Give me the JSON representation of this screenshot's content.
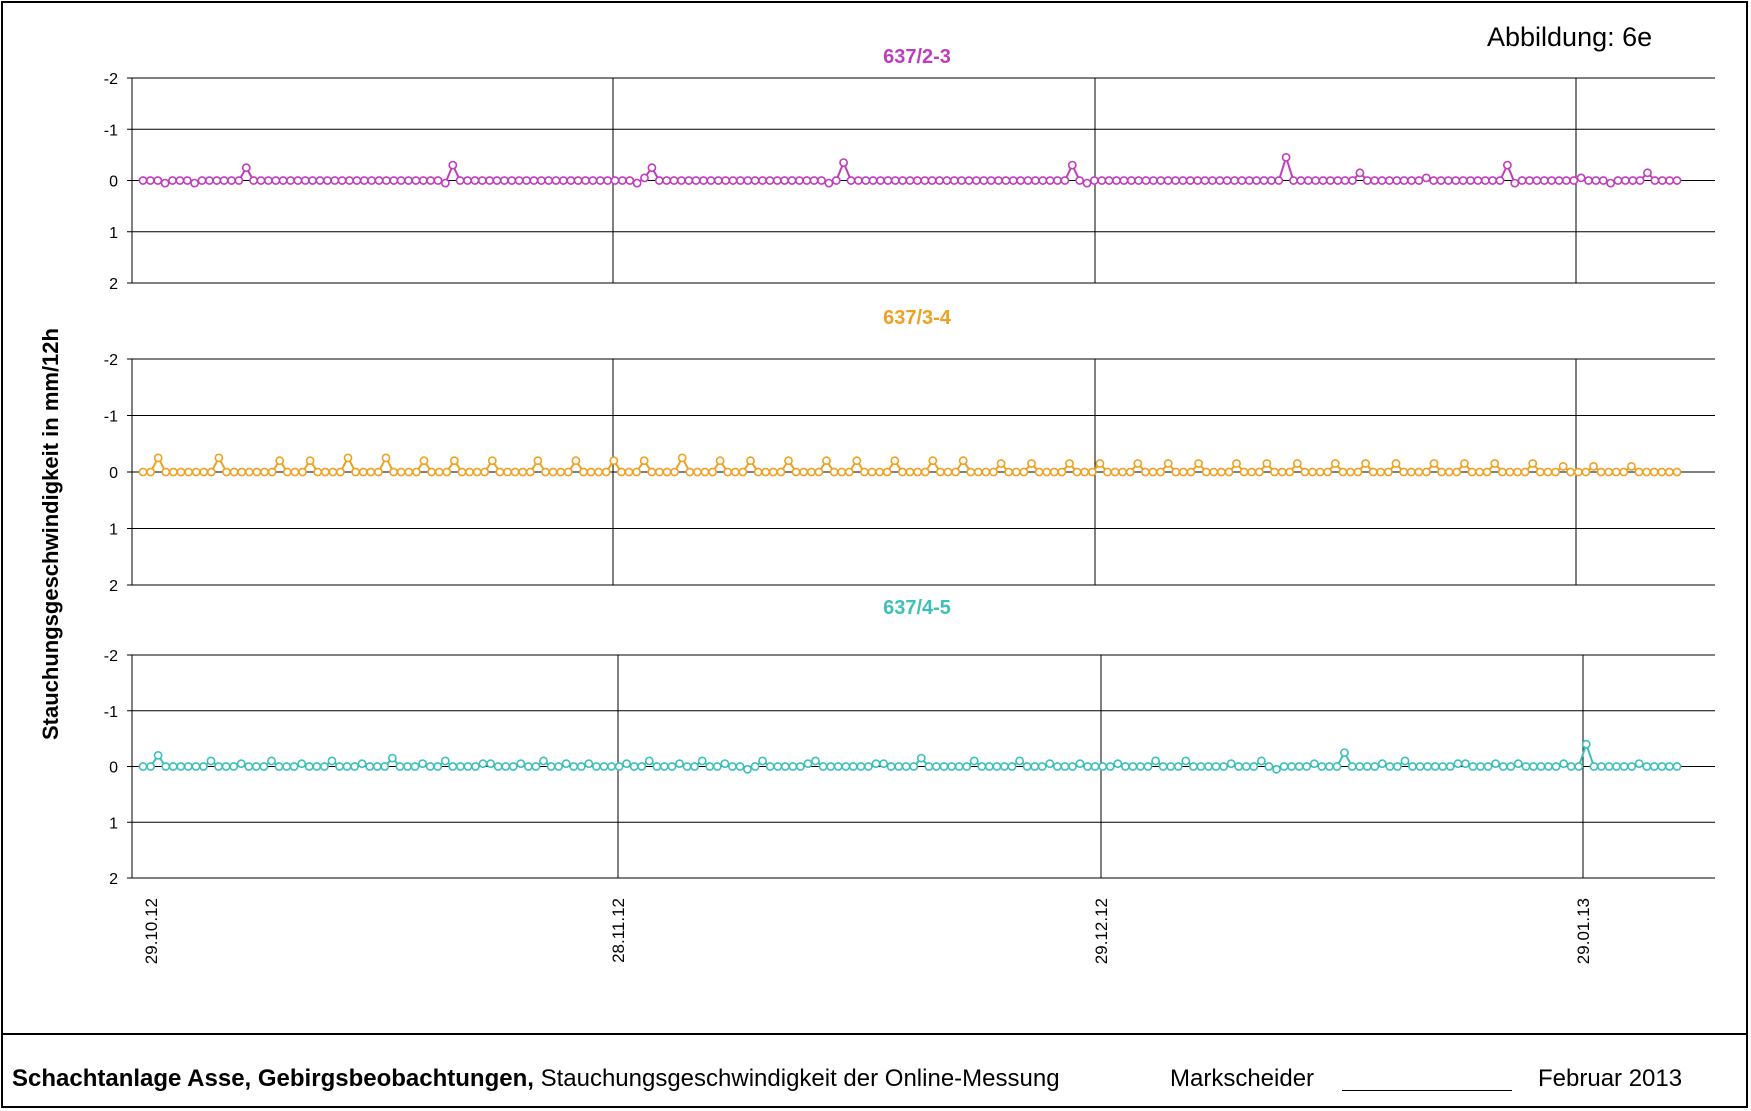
{
  "figure_label": "Abbildung:  6e",
  "y_axis_label": "Stauchungsgeschwindigkeit in mm/12h",
  "footer": {
    "title_bold": "Schachtanlage Asse, Gebirgsbeobachtungen,",
    "title_rest": " Stauchungsgeschwindigkeit der Online-Messung",
    "markscheider": "Markscheider",
    "date": "Februar 2013"
  },
  "chart_data": {
    "type": "line",
    "x_start": "29.10.12",
    "x_end": "10.02.13",
    "x_tick_labels": [
      "29.10.12",
      "28.11.12",
      "29.12.12",
      "29.01.13"
    ],
    "ylim": [
      2,
      -2
    ],
    "y_ticks": [
      -2,
      -1,
      0,
      1,
      2
    ],
    "grid": true,
    "panels": [
      {
        "title": "637/2-3",
        "color": "#c03cbe",
        "series_values_per_12h": [
          0.0,
          0.0,
          0.0,
          0.05,
          0.0,
          0.0,
          0.0,
          0.05,
          0.0,
          0.0,
          0.0,
          0.0,
          0.0,
          0.0,
          -0.25,
          0.0,
          0.0,
          0.0,
          0.0,
          0.0,
          0.0,
          0.0,
          0.0,
          0.0,
          0.0,
          0.0,
          0.0,
          0.0,
          0.0,
          0.0,
          0.0,
          0.0,
          0.0,
          0.0,
          0.0,
          0.0,
          0.0,
          0.0,
          0.0,
          0.0,
          0.0,
          0.05,
          -0.3,
          0.0,
          0.0,
          0.0,
          0.0,
          0.0,
          0.0,
          0.0,
          0.0,
          0.0,
          0.0,
          0.0,
          0.0,
          0.0,
          0.0,
          0.0,
          0.0,
          0.0,
          0.0,
          0.0,
          0.0,
          0.0,
          0.0,
          0.0,
          0.0,
          0.05,
          -0.05,
          -0.25,
          0.0,
          0.0,
          0.0,
          0.0,
          0.0,
          0.0,
          0.0,
          0.0,
          0.0,
          0.0,
          0.0,
          0.0,
          0.0,
          0.0,
          0.0,
          0.0,
          0.0,
          0.0,
          0.0,
          0.0,
          0.0,
          0.0,
          0.0,
          0.05,
          0.0,
          -0.35,
          0.0,
          0.0,
          0.0,
          0.0,
          0.0,
          0.0,
          0.0,
          0.0,
          0.0,
          0.0,
          0.0,
          0.0,
          0.0,
          0.0,
          0.0,
          0.0,
          0.0,
          0.0,
          0.0,
          0.0,
          0.0,
          0.0,
          0.0,
          0.0,
          0.0,
          0.0,
          0.0,
          0.0,
          0.0,
          0.0,
          -0.3,
          0.0,
          0.05,
          0.0,
          0.0,
          0.0,
          0.0,
          0.0,
          0.0,
          0.0,
          0.0,
          0.0,
          0.0,
          0.0,
          0.0,
          0.0,
          0.0,
          0.0,
          0.0,
          0.0,
          0.0,
          0.0,
          0.0,
          0.0,
          0.0,
          0.0,
          0.0,
          0.0,
          0.0,
          -0.45,
          0.0,
          0.0,
          0.0,
          0.0,
          0.0,
          0.0,
          0.0,
          0.0,
          0.0,
          -0.15,
          0.0,
          0.0,
          0.0,
          0.0,
          0.0,
          0.0,
          0.0,
          0.0,
          -0.05,
          0.0,
          0.0,
          0.0,
          0.0,
          0.0,
          0.0,
          0.0,
          0.0,
          0.0,
          0.0,
          -0.3,
          0.05,
          0.0,
          0.0,
          0.0,
          0.0,
          0.0,
          0.0,
          0.0,
          0.0,
          -0.05,
          0.0,
          0.0,
          0.0,
          0.05,
          0.0,
          0.0,
          0.0,
          0.0,
          -0.15,
          0.0,
          0.0,
          0.0,
          0.0
        ]
      },
      {
        "title": "637/3-4",
        "color": "#f0a020",
        "series_values_per_12h": [
          0.0,
          0.0,
          -0.25,
          0.0,
          0.0,
          0.0,
          0.0,
          0.0,
          0.0,
          0.0,
          -0.25,
          0.0,
          0.0,
          0.0,
          0.0,
          0.0,
          0.0,
          0.0,
          -0.2,
          0.0,
          0.0,
          0.0,
          -0.2,
          0.0,
          0.0,
          0.0,
          0.0,
          -0.25,
          0.0,
          0.0,
          0.0,
          0.0,
          -0.25,
          0.0,
          0.0,
          0.0,
          0.0,
          -0.2,
          0.0,
          0.0,
          0.0,
          -0.2,
          0.0,
          0.0,
          0.0,
          0.0,
          -0.2,
          0.0,
          0.0,
          0.0,
          0.0,
          0.0,
          -0.2,
          0.0,
          0.0,
          0.0,
          0.0,
          -0.2,
          0.0,
          0.0,
          0.0,
          0.0,
          -0.2,
          0.0,
          0.0,
          0.0,
          -0.2,
          0.0,
          0.0,
          0.0,
          0.0,
          -0.25,
          0.0,
          0.0,
          0.0,
          0.0,
          -0.2,
          0.0,
          0.0,
          0.0,
          -0.2,
          0.0,
          0.0,
          0.0,
          0.0,
          -0.2,
          0.0,
          0.0,
          0.0,
          0.0,
          -0.2,
          0.0,
          0.0,
          0.0,
          -0.2,
          0.0,
          0.0,
          0.0,
          0.0,
          -0.2,
          0.0,
          0.0,
          0.0,
          0.0,
          -0.2,
          0.0,
          0.0,
          0.0,
          -0.2,
          0.0,
          0.0,
          0.0,
          0.0,
          -0.15,
          0.0,
          0.0,
          0.0,
          -0.15,
          0.0,
          0.0,
          0.0,
          0.0,
          -0.15,
          0.0,
          0.0,
          0.0,
          -0.15,
          0.0,
          0.0,
          0.0,
          0.0,
          -0.15,
          0.0,
          0.0,
          0.0,
          -0.15,
          0.0,
          0.0,
          0.0,
          -0.15,
          0.0,
          0.0,
          0.0,
          0.0,
          -0.15,
          0.0,
          0.0,
          0.0,
          -0.15,
          0.0,
          0.0,
          0.0,
          -0.15,
          0.0,
          0.0,
          0.0,
          0.0,
          -0.15,
          0.0,
          0.0,
          0.0,
          -0.15,
          0.0,
          0.0,
          0.0,
          -0.15,
          0.0,
          0.0,
          0.0,
          0.0,
          -0.15,
          0.0,
          0.0,
          0.0,
          -0.15,
          0.0,
          0.0,
          0.0,
          -0.15,
          0.0,
          0.0,
          0.0,
          0.0,
          -0.15,
          0.0,
          0.0,
          0.0,
          -0.1,
          0.0,
          0.0,
          0.0,
          -0.1,
          0.0,
          0.0,
          0.0,
          0.0,
          -0.1,
          0.0,
          0.0,
          0.0,
          0.0,
          0.0,
          0.0
        ]
      },
      {
        "title": "637/4-5",
        "color": "#3cc0b8",
        "series_values_per_12h": [
          0.0,
          0.0,
          -0.2,
          0.0,
          0.0,
          0.0,
          0.0,
          0.0,
          0.0,
          -0.1,
          0.0,
          0.0,
          0.0,
          -0.05,
          0.0,
          0.0,
          0.0,
          -0.1,
          0.0,
          0.0,
          0.0,
          -0.05,
          0.0,
          0.0,
          0.0,
          -0.1,
          0.0,
          0.0,
          0.0,
          -0.05,
          0.0,
          0.0,
          0.0,
          -0.15,
          0.0,
          0.0,
          0.0,
          -0.05,
          0.0,
          0.0,
          -0.1,
          0.0,
          0.0,
          0.0,
          0.0,
          -0.05,
          -0.05,
          0.0,
          0.0,
          0.0,
          -0.05,
          0.0,
          0.0,
          -0.1,
          0.0,
          0.0,
          -0.05,
          0.0,
          0.0,
          -0.05,
          0.0,
          0.0,
          0.0,
          0.0,
          -0.05,
          0.0,
          0.0,
          -0.1,
          0.0,
          0.0,
          0.0,
          -0.05,
          0.0,
          0.0,
          -0.1,
          0.0,
          0.0,
          -0.05,
          0.0,
          0.0,
          0.05,
          0.0,
          -0.1,
          0.0,
          0.0,
          0.0,
          0.0,
          0.0,
          -0.05,
          -0.1,
          0.0,
          0.0,
          0.0,
          0.0,
          0.0,
          0.0,
          0.0,
          -0.05,
          -0.05,
          0.0,
          0.0,
          0.0,
          0.0,
          -0.15,
          0.0,
          0.0,
          0.0,
          0.0,
          0.0,
          0.0,
          -0.1,
          0.0,
          0.0,
          0.0,
          0.0,
          0.0,
          -0.1,
          0.0,
          0.0,
          0.0,
          -0.05,
          0.0,
          0.0,
          0.0,
          -0.05,
          0.0,
          0.0,
          0.0,
          0.0,
          -0.05,
          0.0,
          0.0,
          0.0,
          0.0,
          -0.1,
          0.0,
          0.0,
          0.0,
          -0.1,
          0.0,
          0.0,
          0.0,
          0.0,
          0.0,
          -0.05,
          0.0,
          0.0,
          0.0,
          -0.1,
          0.0,
          0.05,
          0.0,
          0.0,
          0.0,
          0.0,
          -0.05,
          0.0,
          0.0,
          0.0,
          -0.25,
          0.0,
          0.0,
          0.0,
          0.0,
          -0.05,
          0.0,
          0.0,
          -0.1,
          0.0,
          0.0,
          0.0,
          0.0,
          0.0,
          0.0,
          -0.05,
          -0.05,
          0.0,
          0.0,
          0.0,
          -0.05,
          0.0,
          0.0,
          -0.05,
          0.0,
          0.0,
          0.0,
          0.0,
          0.0,
          -0.05,
          0.0,
          0.0,
          -0.4,
          0.0,
          0.0,
          0.0,
          0.0,
          0.0,
          0.0,
          -0.05,
          0.0,
          0.0,
          0.0,
          0.0,
          0.0
        ]
      }
    ]
  }
}
